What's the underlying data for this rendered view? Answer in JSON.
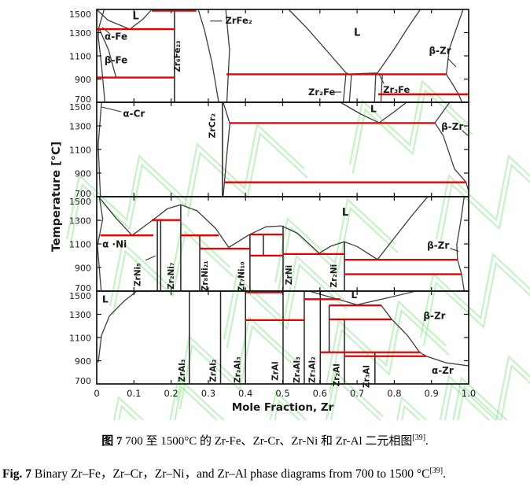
{
  "captions": {
    "zh_prefix": "图 7",
    "zh_body": " 700 至 1500°C 的 Zr-Fe、Zr-Cr、Zr-Ni 和 Zr-Al 二元相图",
    "ref": "[39]",
    "period": ".",
    "en_prefix": "Fig. 7",
    "en_body": " Binary Zr–Fe，Zr–Cr，Zr–Ni，and Zr–Al phase diagrams from 700 to 1500 °C"
  },
  "chart_data": {
    "type": "line",
    "title": "Binary Zr-Fe, Zr-Cr, Zr-Ni and Zr-Al phase diagrams, 700-1500 °C",
    "xlabel": "Mole Fraction, Zr",
    "ylabel": "Temperature [°C]",
    "xlim": [
      0,
      1.0
    ],
    "ylim": [
      700,
      1500
    ],
    "grid": false,
    "x_tick_labels": [
      "0",
      "0.1",
      "0.2",
      "0.3",
      "0.4",
      "0.5",
      "0.6",
      "0.7",
      "0.8",
      "0.9",
      "1.0"
    ],
    "y_ticks": [
      1500,
      1300,
      1100,
      900,
      700
    ],
    "colors": {
      "isotherm": "#e60000",
      "boundary": "#3d3d3d",
      "axis": "#141414",
      "watermark": "#8ee48e"
    },
    "panels": [
      {
        "system": "Zr-Fe",
        "curves": [
          [
            [
              0.02,
              1500
            ],
            [
              0.006,
              1345
            ],
            [
              0.004,
              1270
            ],
            [
              0.013,
              1020
            ],
            [
              0.022,
              700
            ]
          ],
          [
            [
              0.006,
              1340
            ],
            [
              0.032,
              1150
            ],
            [
              0.052,
              913
            ]
          ],
          [
            [
              0.0,
              1500
            ],
            [
              0.03,
              1408
            ],
            [
              0.089,
              1330
            ],
            [
              0.125,
              1418
            ],
            [
              0.148,
              1500
            ]
          ],
          [
            [
              0.273,
              1500
            ],
            [
              0.29,
              1318
            ],
            [
              0.31,
              1040
            ],
            [
              0.328,
              700
            ]
          ],
          [
            [
              0.347,
              1500
            ],
            [
              0.357,
              1150
            ],
            [
              0.35,
              700
            ]
          ],
          [
            [
              0.516,
              1500
            ],
            [
              0.565,
              1340
            ],
            [
              0.625,
              1120
            ],
            [
              0.67,
              955
            ],
            [
              0.678,
              941
            ],
            [
              0.7,
              946
            ],
            [
              0.755,
              952
            ],
            [
              0.8,
              1160
            ],
            [
              0.838,
              1350
            ],
            [
              0.87,
              1500
            ]
          ],
          [
            [
              0.985,
              1500
            ],
            [
              0.948,
              1160
            ],
            [
              0.94,
              941
            ],
            [
              0.958,
              850
            ],
            [
              0.973,
              769
            ],
            [
              0.982,
              700
            ]
          ],
          [
            [
              0.67,
              941
            ],
            [
              0.663,
              700
            ]
          ],
          [
            [
              0.685,
              941
            ],
            [
              0.679,
              700
            ]
          ],
          [
            [
              0.75,
              941
            ],
            [
              0.747,
              700
            ]
          ],
          [
            [
              0.768,
              941
            ],
            [
              0.764,
              700
            ]
          ]
        ],
        "verticals": [
          [
            0.209,
            1500,
            700
          ]
        ],
        "isotherms": [
          [
            1500,
            0.148,
            0.268
          ],
          [
            1330,
            0,
            0.209
          ],
          [
            913,
            0,
            0.209
          ],
          [
            941,
            0.349,
            0.94
          ],
          [
            769,
            0.757,
            1.0
          ]
        ],
        "leaders": [
          [
            [
              0.035,
              1292
            ],
            [
              0.015,
              1345
            ]
          ],
          [
            [
              0.305,
              1400
            ],
            [
              0.337,
              1400
            ]
          ],
          [
            [
              0.636,
              788
            ],
            [
              0.658,
              788
            ]
          ],
          [
            [
              0.772,
              862
            ],
            [
              0.76,
              935
            ]
          ],
          [
            [
              0.944,
              1078
            ],
            [
              0.966,
              1005
            ]
          ]
        ],
        "labels": [
          {
            "t": "L",
            "x": 0.105,
            "T": 1440,
            "fs": 13
          },
          {
            "t": "α-Fe",
            "x": 0.052,
            "T": 1262,
            "fs": 12
          },
          {
            "t": "β-Fe",
            "x": 0.052,
            "T": 1058,
            "fs": 12
          },
          {
            "t": "Zr₆Fe₂₃",
            "x": 0.224,
            "T": 1120,
            "rot": 1,
            "fs": 10.5
          },
          {
            "t": "ZrFe₂",
            "x": 0.382,
            "T": 1402,
            "fs": 11.5
          },
          {
            "t": "L",
            "x": 0.7,
            "T": 1298,
            "fs": 13
          },
          {
            "t": "Zr₂Fe",
            "x": 0.605,
            "T": 786,
            "fs": 11.5
          },
          {
            "t": "Zr₃Fe",
            "x": 0.806,
            "T": 806,
            "fs": 11.5
          },
          {
            "t": "β-Zr",
            "x": 0.923,
            "T": 1140,
            "fs": 12
          }
        ]
      },
      {
        "system": "Zr-Cr",
        "curves": [
          [
            [
              0.013,
              1500
            ],
            [
              0.004,
              1140
            ],
            [
              0.01,
              700
            ]
          ],
          [
            [
              0.34,
              1500
            ],
            [
              0.358,
              1320
            ],
            [
              0.35,
              1060
            ],
            [
              0.34,
              700
            ]
          ],
          [
            [
              0.655,
              1500
            ],
            [
              0.71,
              1400
            ],
            [
              0.759,
              1326
            ],
            [
              0.8,
              1420
            ],
            [
              0.833,
              1500
            ]
          ],
          [
            [
              0.949,
              1500
            ],
            [
              0.909,
              1326
            ]
          ],
          [
            [
              0.909,
              1326
            ],
            [
              0.932,
              1215
            ],
            [
              0.962,
              935
            ],
            [
              0.993,
              822
            ],
            [
              1.0,
              745
            ]
          ]
        ],
        "verticals": [
          [
            0.338,
            1500,
            700
          ]
        ],
        "isotherms": [
          [
            1324,
            0.357,
            0.909
          ],
          [
            822,
            0.342,
            0.993
          ]
        ],
        "leaders": [
          [
            [
              0.066,
              1420
            ],
            [
              0.013,
              1460
            ]
          ],
          [
            [
              0.982,
              1262
            ],
            [
              0.998,
              1218
            ]
          ]
        ],
        "labels": [
          {
            "t": "α-Cr",
            "x": 0.1,
            "T": 1400,
            "fs": 12
          },
          {
            "t": "ZrCr₂",
            "x": 0.318,
            "T": 1325,
            "rot": 1,
            "fs": 11
          },
          {
            "t": "L",
            "x": 0.744,
            "T": 1440,
            "fs": 12.5
          },
          {
            "t": "β-Zr",
            "x": 0.956,
            "T": 1290,
            "fs": 12
          }
        ]
      },
      {
        "system": "Zr-Ni",
        "curves": [
          [
            [
              0.007,
              1500
            ],
            [
              0.016,
              1310
            ],
            [
              0.002,
              1085
            ],
            [
              0.012,
              700
            ]
          ],
          [
            [
              0.008,
              1490
            ],
            [
              0.05,
              1325
            ],
            [
              0.095,
              1172
            ],
            [
              0.15,
              1300
            ],
            [
              0.19,
              1398
            ],
            [
              0.226,
              1432
            ],
            [
              0.27,
              1380
            ],
            [
              0.32,
              1230
            ],
            [
              0.355,
              1069
            ],
            [
              0.41,
              1178
            ],
            [
              0.455,
              1245
            ],
            [
              0.497,
              1253
            ],
            [
              0.54,
              1190
            ],
            [
              0.598,
              1021
            ],
            [
              0.63,
              1082
            ],
            [
              0.666,
              1118
            ],
            [
              0.7,
              1078
            ],
            [
              0.755,
              968
            ],
            [
              0.8,
              1150
            ],
            [
              0.85,
              1350
            ],
            [
              0.89,
              1500
            ]
          ],
          [
            [
              0.988,
              1500
            ],
            [
              0.979,
              1300
            ],
            [
              0.968,
              1095
            ],
            [
              0.97,
              966
            ],
            [
              0.981,
              843
            ],
            [
              0.988,
              700
            ]
          ]
        ],
        "verticals": [
          [
            0.163,
            1302,
            700
          ],
          [
            0.172,
            1302,
            700
          ],
          [
            0.226,
            1432,
            700
          ],
          [
            0.277,
            1172,
            700
          ],
          [
            0.412,
            1180,
            700
          ],
          [
            0.448,
            1180,
            1001
          ],
          [
            0.501,
            1253,
            700
          ],
          [
            0.666,
            1118,
            700
          ]
        ],
        "isotherms": [
          [
            1172,
            0.01,
            0.152
          ],
          [
            1302,
            0.148,
            0.226
          ],
          [
            1172,
            0.226,
            0.328
          ],
          [
            1060,
            0.277,
            0.412
          ],
          [
            1180,
            0.412,
            0.501
          ],
          [
            1001,
            0.412,
            0.501
          ],
          [
            1014,
            0.501,
            0.666
          ],
          [
            966,
            0.666,
            0.97
          ],
          [
            843,
            0.666,
            0.981
          ]
        ],
        "leaders": [
          [
            [
              0.131,
              962
            ],
            [
              0.158,
              998
            ]
          ],
          [
            [
              0.95,
              1062
            ],
            [
              0.973,
              1038
            ]
          ]
        ],
        "labels": [
          {
            "t": "α ·Ni",
            "x": 0.048,
            "T": 1092,
            "fs": 12
          },
          {
            "t": "ZrNi₅",
            "x": 0.117,
            "T": 862,
            "rot": 1,
            "fs": 10.5
          },
          {
            "t": "Zr₂Ni₇",
            "x": 0.207,
            "T": 852,
            "rot": 1,
            "fs": 10.5
          },
          {
            "t": "Zr₈Ni₂₁",
            "x": 0.298,
            "T": 852,
            "rot": 1,
            "fs": 10.5
          },
          {
            "t": "Zr₇Ni₁₀",
            "x": 0.396,
            "T": 845,
            "rot": 1,
            "fs": 10.5
          },
          {
            "t": "ZrNi",
            "x": 0.524,
            "T": 860,
            "rot": 1,
            "fs": 10.5
          },
          {
            "t": "Zr₂Ni",
            "x": 0.645,
            "T": 852,
            "rot": 1,
            "fs": 10.5
          },
          {
            "t": "L",
            "x": 0.668,
            "T": 1362,
            "fs": 13
          },
          {
            "t": "β-Zr",
            "x": 0.918,
            "T": 1085,
            "fs": 12
          }
        ]
      },
      {
        "system": "Zr-Al",
        "curves": [
          [
            [
              0.004,
              885
            ],
            [
              0.013,
              1120
            ],
            [
              0.034,
              1285
            ],
            [
              0.075,
              1418
            ],
            [
              0.108,
              1500
            ]
          ],
          [
            [
              0.571,
              1500
            ],
            [
              0.635,
              1442
            ],
            [
              0.7,
              1382
            ],
            [
              0.79,
              1448
            ],
            [
              0.858,
              1500
            ]
          ],
          [
            [
              0.7,
              1382
            ],
            [
              0.765,
              1377
            ],
            [
              0.793,
              1257
            ],
            [
              0.835,
              1120
            ],
            [
              0.868,
              973
            ],
            [
              0.886,
              939
            ],
            [
              0.94,
              882
            ],
            [
              1.0,
              856
            ]
          ]
        ],
        "verticals": [
          [
            0.249,
            1500,
            700
          ],
          [
            0.333,
            1500,
            700
          ],
          [
            0.4,
            1500,
            700
          ],
          [
            0.501,
            1500,
            700
          ],
          [
            0.558,
            1500,
            700
          ],
          [
            0.601,
            1500,
            700
          ],
          [
            0.625,
            1377,
            973
          ],
          [
            0.666,
            1257,
            700
          ],
          [
            0.748,
            973,
            700
          ]
        ],
        "isotherms": [
          [
            1500,
            0.402,
            0.501
          ],
          [
            1430,
            0.558,
            0.655
          ],
          [
            1377,
            0.625,
            0.765
          ],
          [
            1257,
            0.627,
            0.793
          ],
          [
            1250,
            0.4,
            0.558
          ],
          [
            973,
            0.601,
            0.87
          ],
          [
            939,
            0.666,
            0.886
          ]
        ],
        "leaders": [],
        "labels": [
          {
            "t": "L",
            "x": 0.023,
            "T": 1425,
            "fs": 12.5
          },
          {
            "t": "ZrAl₃",
            "x": 0.237,
            "T": 838,
            "rot": 1,
            "fs": 10.5
          },
          {
            "t": "ZrAl₂",
            "x": 0.32,
            "T": 838,
            "rot": 1,
            "fs": 10.5
          },
          {
            "t": "Zr₂Al₃",
            "x": 0.386,
            "T": 845,
            "rot": 1,
            "fs": 10.5
          },
          {
            "t": "ZrAl",
            "x": 0.487,
            "T": 835,
            "rot": 1,
            "fs": 10.5
          },
          {
            "t": "Zr₄Al₃",
            "x": 0.545,
            "T": 845,
            "rot": 1,
            "fs": 10.5
          },
          {
            "t": "Zr₃Al₂",
            "x": 0.587,
            "T": 845,
            "rot": 1,
            "fs": 10.5
          },
          {
            "t": "Zr₂Al",
            "x": 0.652,
            "T": 800,
            "rot": 1,
            "fs": 10.5
          },
          {
            "t": "Zr₃Al",
            "x": 0.733,
            "T": 788,
            "rot": 1,
            "fs": 10.5
          },
          {
            "t": "L",
            "x": 0.692,
            "T": 1462,
            "fs": 12
          },
          {
            "t": "β-Zr",
            "x": 0.908,
            "T": 1282,
            "fs": 12
          },
          {
            "t": "α-Zr",
            "x": 0.93,
            "T": 812,
            "fs": 12
          }
        ]
      }
    ]
  }
}
